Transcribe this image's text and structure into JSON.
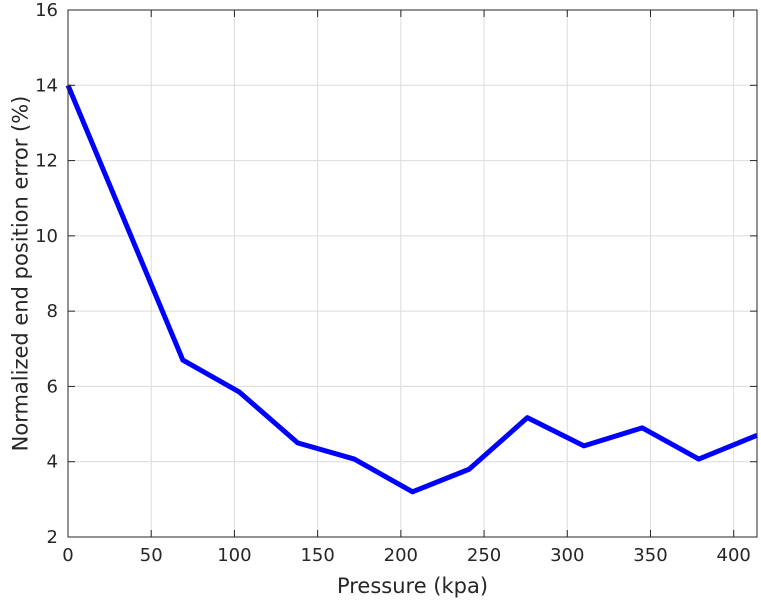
{
  "chart_data": {
    "type": "line",
    "title": "",
    "xlabel": "Pressure (kpa)",
    "ylabel": "Normalized end position error (%)",
    "xlim": [
      0,
      414
    ],
    "ylim": [
      2,
      16
    ],
    "xticks": [
      0,
      50,
      100,
      150,
      200,
      250,
      300,
      350,
      400
    ],
    "yticks": [
      2,
      4,
      6,
      8,
      10,
      12,
      14,
      16
    ],
    "grid": true,
    "legend": "none",
    "series": [
      {
        "color": "#0000ff",
        "x": [
          0,
          69,
          103,
          138,
          172,
          207,
          241,
          276,
          310,
          345,
          379,
          414
        ],
        "y": [
          14.0,
          6.7,
          5.85,
          4.5,
          4.07,
          3.2,
          3.8,
          5.17,
          4.42,
          4.9,
          4.07,
          4.7
        ]
      }
    ]
  }
}
